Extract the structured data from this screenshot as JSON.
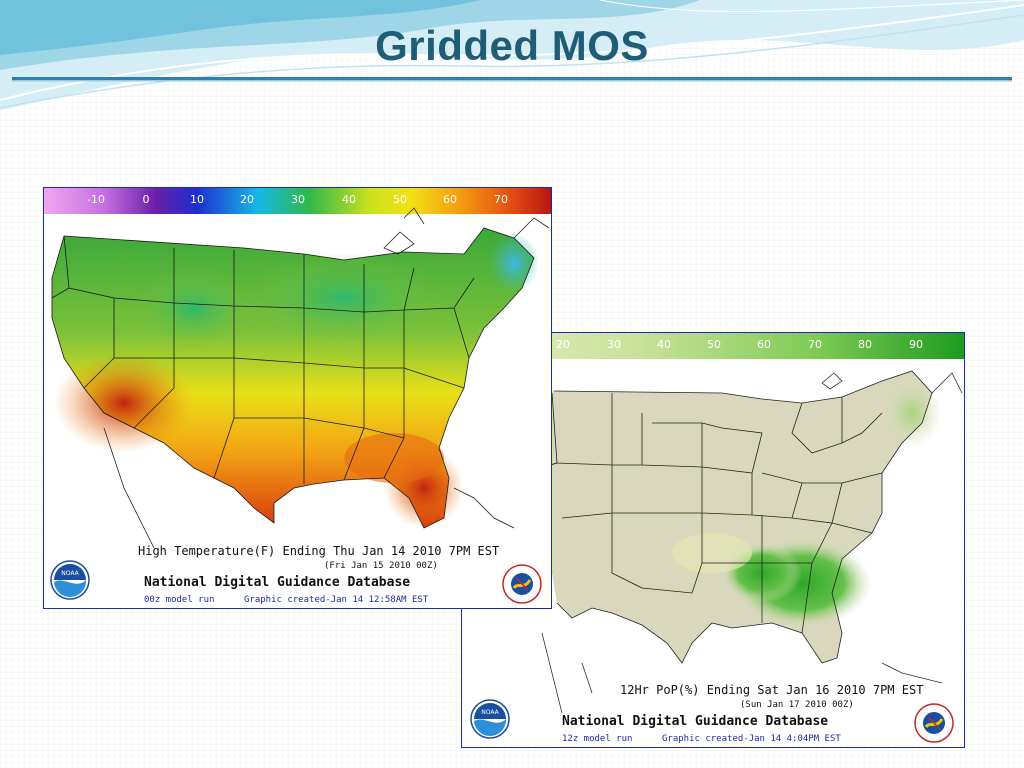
{
  "title": "Gridded MOS",
  "temperature_map": {
    "scale_labels": [
      "-10",
      "0",
      "10",
      "20",
      "30",
      "40",
      "50",
      "60",
      "70"
    ],
    "caption_line1": "High Temperature(F) Ending Thu Jan 14 2010   7PM EST",
    "caption_line2": "(Fri Jan 15 2010 00Z)",
    "database_name": "National Digital Guidance Database",
    "model_run": "00z model run",
    "graphic_created": "Graphic created-Jan 14 12:58AM EST",
    "left_logo": "noaa-logo",
    "right_logo": "national-weather-service-logo",
    "logo_text_noaa": "NOAA",
    "logo_text_nws": "NATIONAL WEATHER SERVICE"
  },
  "pop_map": {
    "scale_labels": [
      "20",
      "30",
      "40",
      "50",
      "60",
      "70",
      "80",
      "90"
    ],
    "caption_line1": "12Hr PoP(%) Ending Sat Jan 16 2010   7PM EST",
    "caption_line2": "(Sun Jan 17 2010 00Z)",
    "database_name": "National Digital Guidance Database",
    "model_run": "12z model run",
    "graphic_created": "Graphic created-Jan 14  4:04PM EST",
    "left_logo": "noaa-logo",
    "right_logo": "national-weather-service-logo",
    "logo_text_noaa": "NOAA",
    "logo_text_nws": "NATIONAL WEATHER SERVICE"
  },
  "colors": {
    "title": "#1f5d77",
    "panel_border": "#1a2aa8",
    "header_wave_light": "#bfe3ee",
    "header_wave_mid": "#6fc3dd",
    "header_line": "#2d7fb8"
  }
}
